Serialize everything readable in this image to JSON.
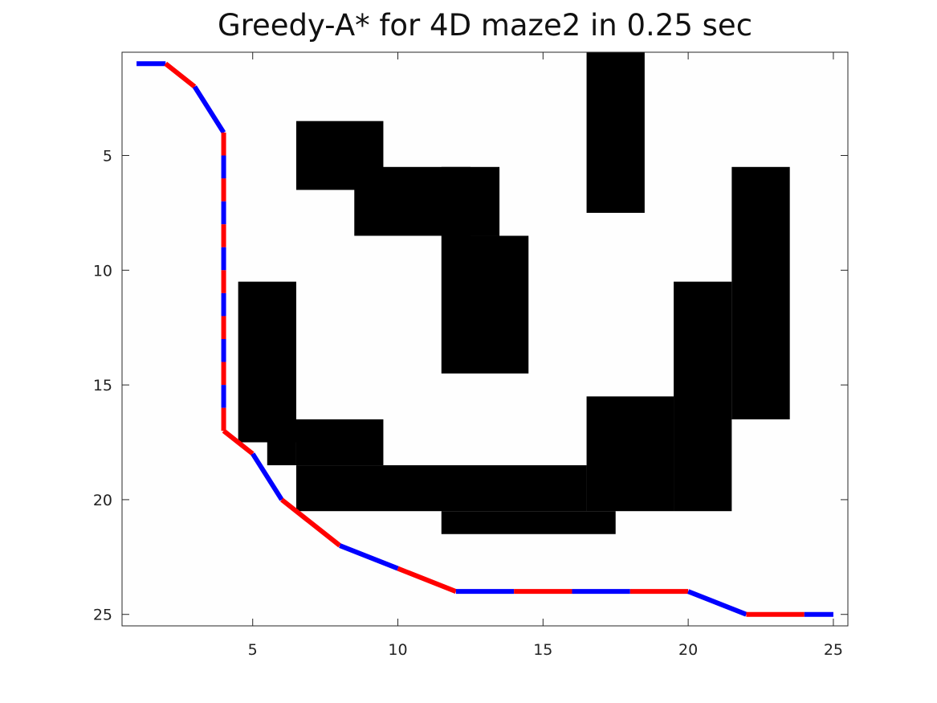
{
  "chart_data": {
    "type": "maze_path",
    "title": "Greedy-A* for 4D maze2 in 0.25 sec",
    "xlim": [
      0.5,
      25.5
    ],
    "ylim": [
      0.5,
      25.5
    ],
    "y_reversed": true,
    "xticks": [
      5,
      10,
      15,
      20,
      25
    ],
    "yticks": [
      5,
      10,
      15,
      20,
      25
    ],
    "grid": false,
    "colors": {
      "obstacle": "#000000",
      "background": "#fefefe",
      "path_a": "#0000ff",
      "path_b": "#ff0000",
      "axes": "#262626"
    },
    "obstacles": [
      {
        "x": [
          17,
          18
        ],
        "y": [
          1,
          7
        ]
      },
      {
        "x": [
          7,
          9
        ],
        "y": [
          4,
          6
        ]
      },
      {
        "x": [
          9,
          12
        ],
        "y": [
          6,
          8
        ]
      },
      {
        "x": [
          12,
          13
        ],
        "y": [
          6,
          8
        ]
      },
      {
        "x": [
          12,
          14
        ],
        "y": [
          9,
          14
        ]
      },
      {
        "x": [
          22,
          23
        ],
        "y": [
          6,
          16
        ]
      },
      {
        "x": [
          20,
          21
        ],
        "y": [
          11,
          20
        ]
      },
      {
        "x": [
          5,
          6
        ],
        "y": [
          11,
          17
        ]
      },
      {
        "x": [
          6,
          6
        ],
        "y": [
          17,
          18
        ]
      },
      {
        "x": [
          7,
          9
        ],
        "y": [
          17,
          18
        ]
      },
      {
        "x": [
          7,
          16
        ],
        "y": [
          19,
          20
        ]
      },
      {
        "x": [
          17,
          19
        ],
        "y": [
          16,
          20
        ]
      },
      {
        "x": [
          12,
          17
        ],
        "y": [
          21,
          21
        ]
      }
    ],
    "path": {
      "x": [
        1,
        2,
        3,
        4,
        4,
        4,
        4,
        4,
        4,
        4,
        4,
        4,
        4,
        4,
        4,
        4,
        4,
        5,
        6,
        8,
        10,
        12,
        14,
        16,
        18,
        20,
        22,
        24,
        25
      ],
      "y": [
        1,
        1,
        2,
        4,
        5,
        6,
        7,
        8,
        9,
        10,
        11,
        12,
        13,
        14,
        15,
        16,
        17,
        18,
        20,
        22,
        23,
        24,
        24,
        24,
        24,
        24,
        25,
        25,
        25
      ]
    }
  }
}
